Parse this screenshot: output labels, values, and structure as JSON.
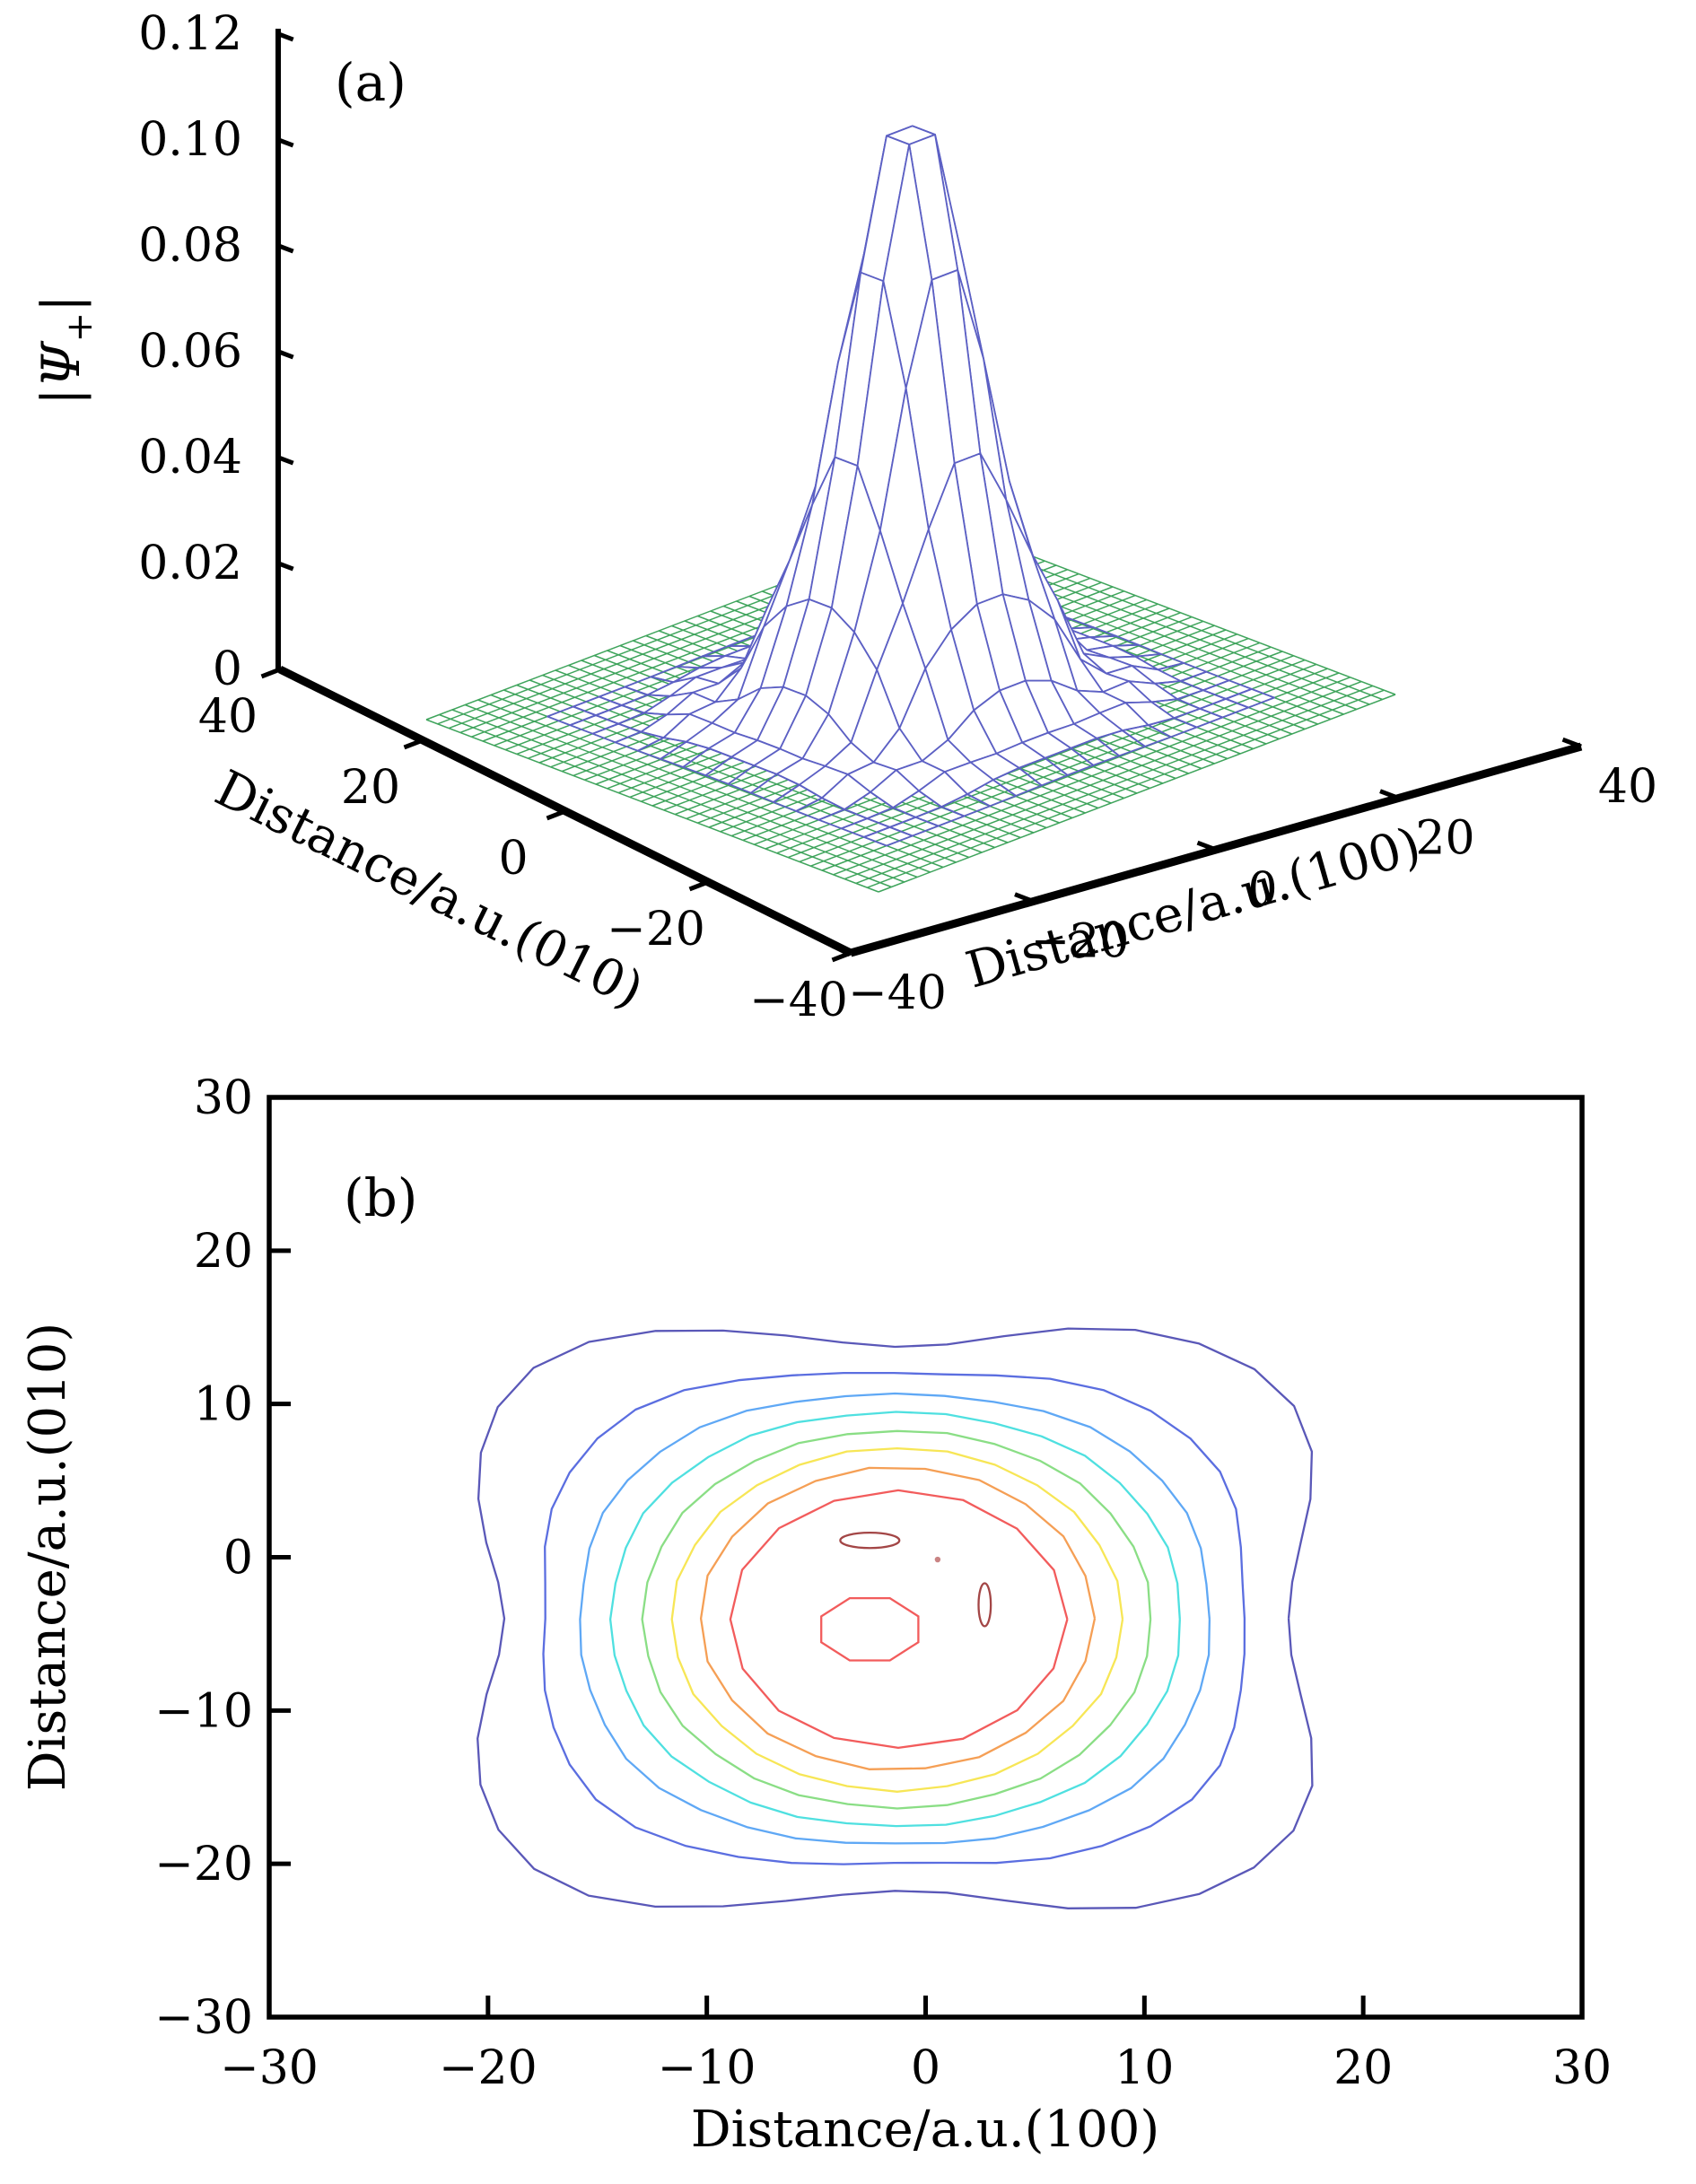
{
  "page": {
    "background": "#ffffff"
  },
  "panels": {
    "a_tag": "(a)",
    "b_tag": "(b)"
  },
  "chart_data": [
    {
      "type": "surface",
      "panel": "(a)",
      "xlabel": "Distance/a.u.(100)",
      "ylabel": "Distance/a.u.(010)",
      "z_label_parts": {
        "pre": "|",
        "psi": "Ψ",
        "sub": "+",
        "post": "|"
      },
      "x_range": [
        -40,
        40
      ],
      "y_range": [
        -40,
        40
      ],
      "z_range": [
        0,
        0.12
      ],
      "x_tick_labels": [
        "−40",
        "−20",
        "0",
        "20",
        "40"
      ],
      "y_tick_labels": [
        "40",
        "20",
        "0",
        "−20",
        "−40"
      ],
      "z_tick_values": [
        0,
        0.02,
        0.04,
        0.06,
        0.08,
        0.1,
        0.12
      ],
      "z_tick_labels": [
        "0",
        "0.02",
        "0.04",
        "0.06",
        "0.08",
        "0.10",
        "0.12"
      ],
      "surface": {
        "peak_amplitude": 0.115,
        "peak_center": [
          0,
          0
        ],
        "gaussian_sigma": 11.3,
        "ripple_rings": [
          {
            "r": 16.5,
            "amp": 0.005,
            "width": 3.4
          },
          {
            "r": 25.5,
            "amp": 0.0022,
            "width": 3.2
          }
        ],
        "four_fold_modulation": 0.4,
        "mesh_min": -30,
        "mesh_max": 30,
        "mesh_step": 4,
        "mesh_color": "#5c60c4"
      },
      "floor": {
        "min": -40,
        "max": 40,
        "step": 2,
        "grid_color": "#3fa45c"
      },
      "axis_color": "#000000"
    },
    {
      "type": "contour",
      "panel": "(b)",
      "xlabel": "Distance/a.u.(100)",
      "ylabel": "Distance/a.u.(010)",
      "x_range": [
        -30,
        30
      ],
      "y_range": [
        -30,
        30
      ],
      "x_tick_values": [
        -30,
        -20,
        -10,
        0,
        10,
        20,
        30
      ],
      "x_tick_labels": [
        "−30",
        "−20",
        "−10",
        "0",
        "10",
        "20",
        "30"
      ],
      "y_tick_values": [
        30,
        20,
        10,
        0,
        -10,
        -20,
        -30
      ],
      "y_tick_labels": [
        "30",
        "20",
        "10",
        "0",
        "−10",
        "−20",
        "−30"
      ],
      "rings": [
        {
          "color": "#5a58b8",
          "cx": -1.4,
          "cy": -4.0,
          "rx": 20.6,
          "ry": 20.4,
          "wave": 0.13,
          "segments": 48
        },
        {
          "color": "#5b6ee0",
          "cx": -1.45,
          "cy": -4.0,
          "rx": 17.0,
          "ry": 17.0,
          "wave": 0.06,
          "segments": 44
        },
        {
          "color": "#5fa8f5",
          "cx": -1.4,
          "cy": -4.05,
          "rx": 14.8,
          "ry": 15.1,
          "wave": 0.028,
          "segments": 40
        },
        {
          "color": "#4fe0e0",
          "cx": -1.35,
          "cy": -4.05,
          "rx": 13.2,
          "ry": 13.7,
          "wave": 0.014,
          "segments": 36
        },
        {
          "color": "#8ade85",
          "cx": -1.3,
          "cy": -4.05,
          "rx": 11.7,
          "ry": 12.4,
          "wave": 0.007,
          "segments": 32
        },
        {
          "color": "#f7e656",
          "cx": -1.3,
          "cy": -4.05,
          "rx": 10.3,
          "ry": 11.2,
          "wave": 0.0,
          "segments": 28
        },
        {
          "color": "#f59f55",
          "cx": -1.3,
          "cy": -4.0,
          "rx": 9.0,
          "ry": 9.9,
          "wave": 0.0,
          "segments": 22
        },
        {
          "color": "#f25c5c",
          "cx": -1.25,
          "cy": -4.05,
          "rx": 7.7,
          "ry": 8.4,
          "wave": 0.0,
          "segments": 16
        }
      ],
      "inner_features": [
        {
          "shape": "ellipse",
          "cx": -2.55,
          "cy": 1.1,
          "rx": 1.35,
          "ry": 0.5,
          "color": "#a34646"
        },
        {
          "shape": "octagon",
          "cx": -2.55,
          "cy": -4.7,
          "rx": 2.4,
          "ry": 2.2,
          "color": "#f25c5c"
        },
        {
          "shape": "ellipse",
          "cx": 2.7,
          "cy": -3.1,
          "rx": 0.28,
          "ry": 1.4,
          "color": "#a34646"
        },
        {
          "shape": "dot",
          "cx": 0.55,
          "cy": -0.15,
          "r": 0.18,
          "color": "#c98383"
        }
      ],
      "frame_color": "#000000"
    }
  ]
}
